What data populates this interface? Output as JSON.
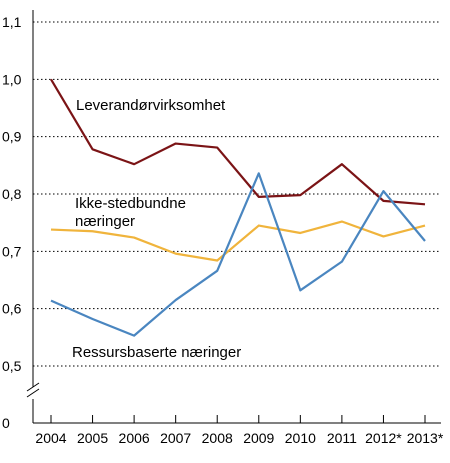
{
  "chart_data": {
    "type": "line",
    "x": [
      "2004",
      "2005",
      "2006",
      "2007",
      "2008",
      "2009",
      "2010",
      "2011",
      "2012*",
      "2013*"
    ],
    "yticks": [
      "0",
      "0,5",
      "0,6",
      "0,7",
      "0,8",
      "0,9",
      "1,0",
      "1,1"
    ],
    "ylim": [
      0.5,
      1.1
    ],
    "axis_break": true,
    "grid": true,
    "series": [
      {
        "name": "Leverandørvirksomhet",
        "color": "#7b1416",
        "values": [
          1.0,
          0.878,
          0.852,
          0.888,
          0.881,
          0.795,
          0.798,
          0.852,
          0.788,
          0.782
        ]
      },
      {
        "name": "Ikke-stedbundne næringer",
        "label_lines": [
          "Ikke-stedbundne",
          "næringer"
        ],
        "color": "#f0b43c",
        "values": [
          0.738,
          0.735,
          0.724,
          0.696,
          0.684,
          0.745,
          0.732,
          0.752,
          0.726,
          0.745
        ]
      },
      {
        "name": "Ressursbaserte næringer",
        "color": "#4a86c0",
        "values": [
          0.614,
          0.582,
          0.553,
          0.615,
          0.666,
          0.836,
          0.632,
          0.682,
          0.805,
          0.718
        ]
      }
    ]
  }
}
